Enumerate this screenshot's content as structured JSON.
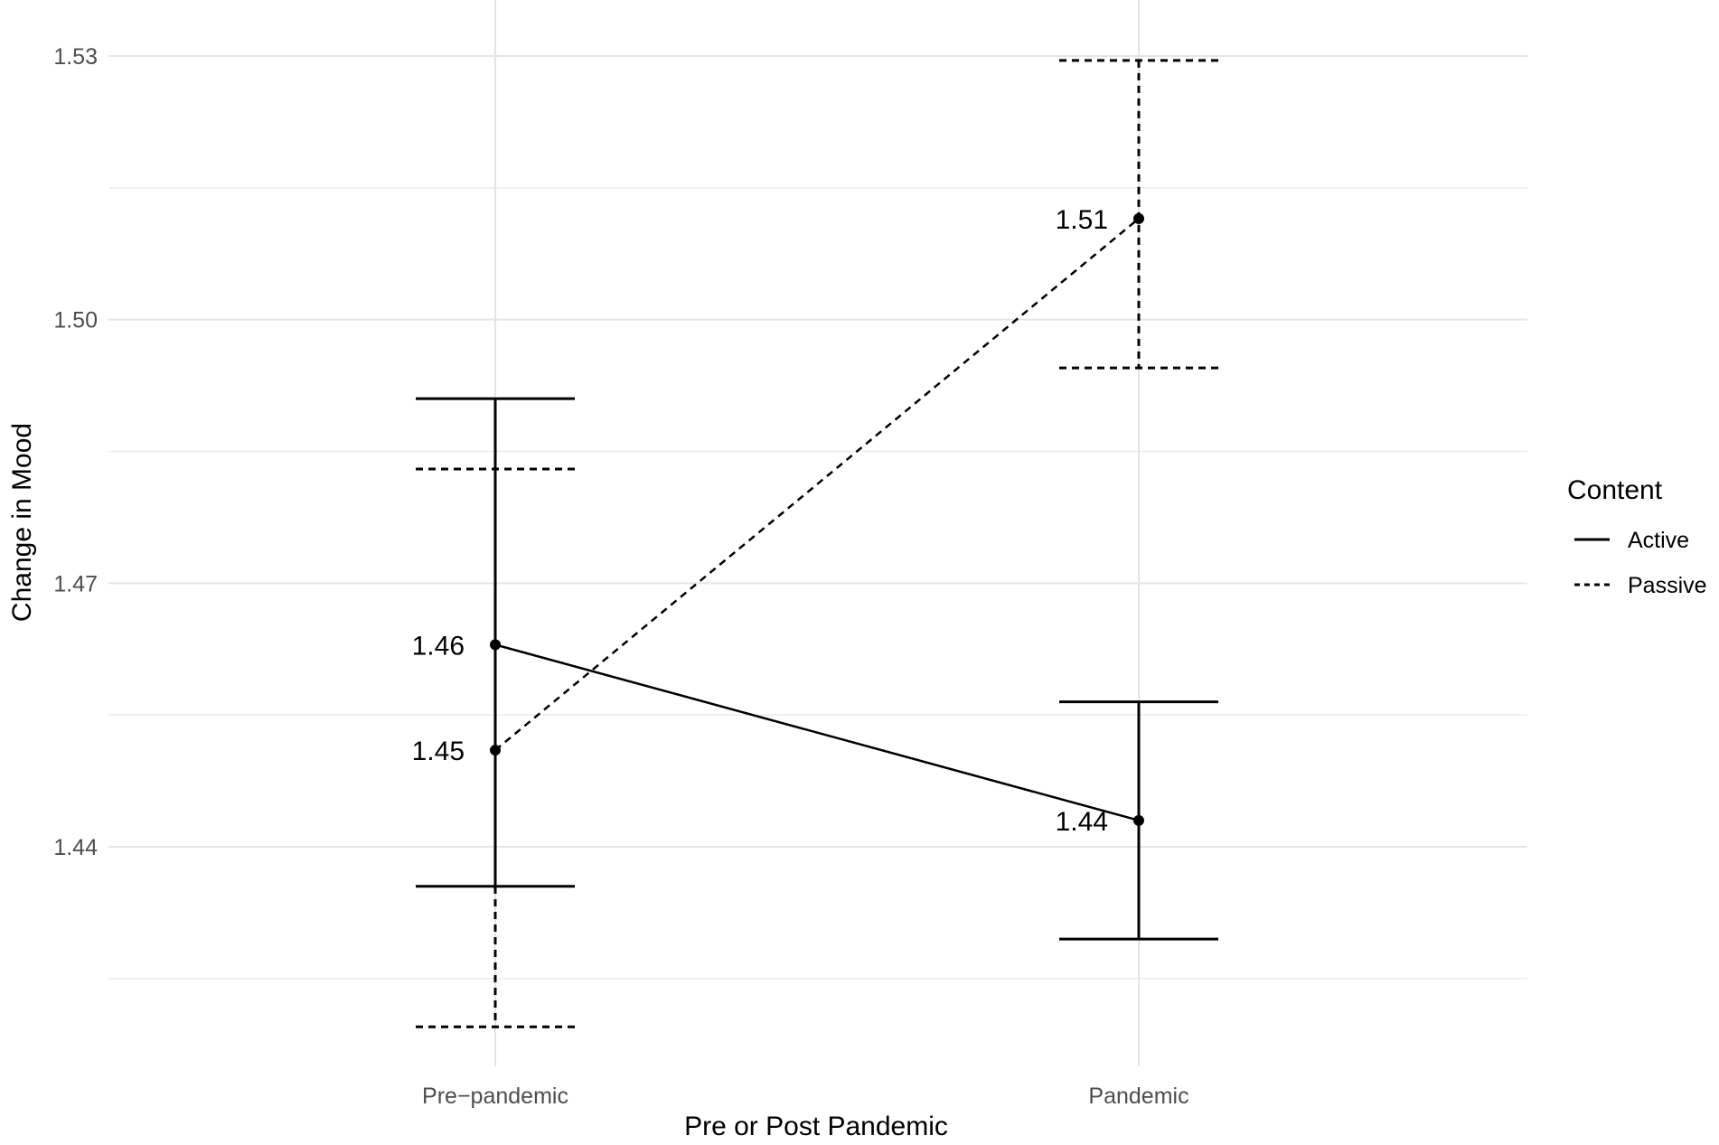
{
  "chart_data": {
    "type": "line",
    "xlabel": "Pre or Post Pandemic",
    "ylabel": "Change in Mood",
    "categories": [
      "Pre−pandemic",
      "Pandemic"
    ],
    "ylim": [
      1.415,
      1.533
    ],
    "y_ticks": [
      {
        "value": 1.44,
        "label": "1.44"
      },
      {
        "value": 1.47,
        "label": "1.47"
      },
      {
        "value": 1.5,
        "label": "1.50"
      },
      {
        "value": 1.53,
        "label": "1.53"
      }
    ],
    "grid": true,
    "legend": {
      "title": "Content",
      "position": "right"
    },
    "series": [
      {
        "name": "Active",
        "linestyle": "solid",
        "values": [
          1.463,
          1.443
        ],
        "data_labels": [
          "1.46",
          "1.44"
        ],
        "error_low": [
          1.4355,
          1.4295
        ],
        "error_high": [
          1.491,
          1.4565
        ]
      },
      {
        "name": "Passive",
        "linestyle": "dashed",
        "values": [
          1.451,
          1.5115
        ],
        "data_labels": [
          "1.45",
          "1.51"
        ],
        "error_low": [
          1.4195,
          1.4945
        ],
        "error_high": [
          1.483,
          1.5295
        ]
      }
    ],
    "colors": {
      "line": "#000000",
      "grid": "#e5e5e5",
      "tick_text": "#4d4d4d"
    }
  }
}
